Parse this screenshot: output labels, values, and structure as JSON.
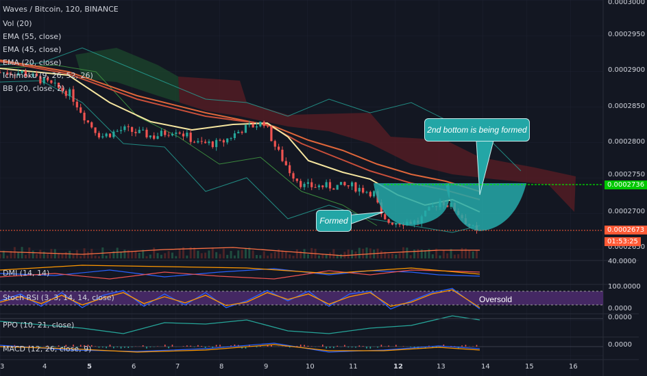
{
  "symbol_title": "Waves / Bitcoin, 120, BINANCE",
  "indicators": {
    "vol": "Vol (20)",
    "ema55": "EMA (55, close)",
    "ema45": "EMA (45, close)",
    "ema20": "EMA (20, close)",
    "ichimoku": "Ichimoku (9, 26, 52, 26)",
    "bb": "BB (20, close, 2)"
  },
  "price_axis": [
    "0.0003000",
    "0.0002950",
    "0.0002900",
    "0.0002850",
    "0.0002800",
    "0.0002750",
    "0.0002700",
    "0.0002650"
  ],
  "price_tags": {
    "green": "0.0002736",
    "red": "0.0002673",
    "timer": "01:53:25"
  },
  "colors": {
    "background": "#131722",
    "up": "#26a69a",
    "down": "#ef5350",
    "green_line": "#00e600",
    "red_line": "#ff5a36",
    "stoch_band": "#4a2a6a",
    "callout": "#23a6a6"
  },
  "annotations": {
    "second_bottom": "2nd bottom is being formed",
    "formed": "Formed",
    "oversold": "Oversold"
  },
  "panes": {
    "dmi": {
      "label": "DMI (14, 14)",
      "axis": "40.0000"
    },
    "stoch": {
      "label": "Stoch RSI (3, 3, 14, 14, close)",
      "axis_top": "100.0000",
      "axis_bottom": "0.0000"
    },
    "ppo": {
      "label": "PPO (10, 21, close)",
      "axis": "0.0000"
    },
    "macd": {
      "label": "MACD (12, 26, close, 9)",
      "axis": "0.0000"
    }
  },
  "x_axis": [
    "3",
    "4",
    "5",
    "6",
    "7",
    "8",
    "9",
    "10",
    "11",
    "12",
    "13",
    "14",
    "15",
    "16"
  ],
  "chart_data": {
    "type": "candlestick",
    "x_axis": [
      "3",
      "4",
      "5",
      "6",
      "7",
      "8",
      "9",
      "10",
      "11",
      "12",
      "13",
      "14",
      "15",
      "16"
    ],
    "price_axis": [
      0.0003,
      0.000295,
      0.00029,
      0.000285,
      0.00028,
      0.000275,
      0.00027,
      0.000265
    ],
    "ylim": [
      0.000263,
      0.0003
    ],
    "markers": {
      "current_price": 0.0002736,
      "support": 0.0002673
    },
    "close_path": [
      [
        3.0,
        0.00029
      ],
      [
        3.5,
        0.00029
      ],
      [
        3.9,
        0.000289
      ],
      [
        4.6,
        0.000287
      ],
      [
        5.0,
        0.000283
      ],
      [
        5.3,
        0.000281
      ],
      [
        5.8,
        0.000282
      ],
      [
        6.5,
        0.000281
      ],
      [
        7.0,
        0.000282
      ],
      [
        7.5,
        0.00028
      ],
      [
        8.0,
        0.00028
      ],
      [
        8.5,
        0.000282
      ],
      [
        9.0,
        0.000283
      ],
      [
        9.3,
        0.000279
      ],
      [
        9.6,
        0.000276
      ],
      [
        9.9,
        0.000274
      ],
      [
        10.4,
        0.000274
      ],
      [
        11.0,
        0.000274
      ],
      [
        11.5,
        0.000273
      ],
      [
        11.7,
        0.000269
      ],
      [
        12.0,
        0.000269
      ],
      [
        12.5,
        0.000269
      ],
      [
        13.0,
        0.000272
      ],
      [
        13.3,
        0.000271
      ],
      [
        13.6,
        0.000269
      ],
      [
        13.9,
        0.000267
      ]
    ]
  }
}
